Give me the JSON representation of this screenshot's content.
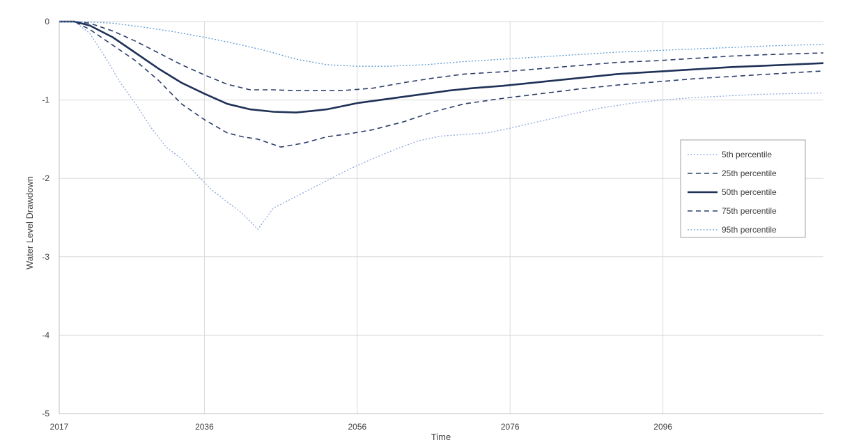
{
  "chart_data": {
    "type": "line",
    "title": "",
    "xlabel": "Time",
    "ylabel": "Water Level Drawdown",
    "xlim": [
      2017,
      2117
    ],
    "ylim": [
      -5,
      0
    ],
    "x_ticks": [
      2017,
      2036,
      2056,
      2076,
      2096
    ],
    "y_ticks": [
      0,
      -1,
      -2,
      -3,
      -4,
      -5
    ],
    "grid": true,
    "legend_position": "right",
    "series": [
      {
        "name": "5th percentile",
        "style": "dotted",
        "color": "#8fa8dc",
        "x": [
          2017,
          2019,
          2021,
          2023,
          2025,
          2027,
          2029,
          2031,
          2033,
          2035,
          2037,
          2039,
          2041,
          2043,
          2045,
          2047,
          2049,
          2051,
          2053,
          2055,
          2058,
          2061,
          2064,
          2067,
          2070,
          2073,
          2076,
          2080,
          2084,
          2088,
          2092,
          2096,
          2100,
          2104,
          2108,
          2112,
          2117
        ],
        "y": [
          0,
          0,
          -0.15,
          -0.45,
          -0.78,
          -1.05,
          -1.35,
          -1.6,
          -1.75,
          -1.95,
          -2.15,
          -2.3,
          -2.45,
          -2.65,
          -2.38,
          -2.28,
          -2.18,
          -2.08,
          -1.98,
          -1.88,
          -1.75,
          -1.63,
          -1.52,
          -1.46,
          -1.44,
          -1.42,
          -1.36,
          -1.27,
          -1.18,
          -1.1,
          -1.04,
          -1.0,
          -0.97,
          -0.95,
          -0.93,
          -0.92,
          -0.91
        ]
      },
      {
        "name": "25th percentile",
        "style": "dashed",
        "color": "#2c3e6c",
        "x": [
          2017,
          2019,
          2021,
          2024,
          2027,
          2030,
          2033,
          2036,
          2039,
          2041,
          2043,
          2046,
          2049,
          2052,
          2055,
          2058,
          2062,
          2066,
          2070,
          2075,
          2080,
          2085,
          2090,
          2095,
          2100,
          2105,
          2110,
          2117
        ],
        "y": [
          0,
          0,
          -0.1,
          -0.3,
          -0.5,
          -0.75,
          -1.05,
          -1.25,
          -1.42,
          -1.47,
          -1.5,
          -1.6,
          -1.55,
          -1.47,
          -1.43,
          -1.38,
          -1.28,
          -1.15,
          -1.05,
          -0.98,
          -0.92,
          -0.86,
          -0.81,
          -0.77,
          -0.73,
          -0.7,
          -0.67,
          -0.63
        ]
      },
      {
        "name": "50th percentile",
        "style": "solid",
        "color": "#1f3157",
        "x": [
          2017,
          2019,
          2021,
          2024,
          2027,
          2030,
          2033,
          2036,
          2039,
          2042,
          2045,
          2048,
          2050,
          2052,
          2054,
          2056,
          2059,
          2062,
          2065,
          2068,
          2071,
          2075,
          2080,
          2085,
          2090,
          2095,
          2100,
          2105,
          2110,
          2117
        ],
        "y": [
          0,
          0,
          -0.05,
          -0.2,
          -0.4,
          -0.6,
          -0.78,
          -0.92,
          -1.05,
          -1.12,
          -1.15,
          -1.16,
          -1.14,
          -1.12,
          -1.08,
          -1.04,
          -1.0,
          -0.96,
          -0.92,
          -0.88,
          -0.85,
          -0.82,
          -0.77,
          -0.72,
          -0.67,
          -0.64,
          -0.61,
          -0.58,
          -0.56,
          -0.53
        ]
      },
      {
        "name": "75th percentile",
        "style": "dashed",
        "color": "#2c3e6c",
        "x": [
          2017,
          2019,
          2021,
          2024,
          2027,
          2030,
          2033,
          2036,
          2039,
          2042,
          2045,
          2048,
          2051,
          2054,
          2058,
          2062,
          2066,
          2070,
          2075,
          2080,
          2085,
          2090,
          2095,
          2100,
          2105,
          2110,
          2117
        ],
        "y": [
          0,
          0,
          -0.02,
          -0.12,
          -0.25,
          -0.4,
          -0.55,
          -0.68,
          -0.8,
          -0.87,
          -0.87,
          -0.88,
          -0.88,
          -0.88,
          -0.85,
          -0.78,
          -0.72,
          -0.67,
          -0.64,
          -0.6,
          -0.56,
          -0.52,
          -0.5,
          -0.47,
          -0.44,
          -0.42,
          -0.4
        ]
      },
      {
        "name": "95th percentile",
        "style": "dotted",
        "color": "#5b9bd5",
        "x": [
          2017,
          2020,
          2024,
          2028,
          2032,
          2036,
          2040,
          2044,
          2048,
          2052,
          2056,
          2060,
          2065,
          2070,
          2075,
          2080,
          2085,
          2090,
          2095,
          2100,
          2105,
          2110,
          2117
        ],
        "y": [
          0,
          0,
          -0.02,
          -0.07,
          -0.13,
          -0.2,
          -0.28,
          -0.37,
          -0.48,
          -0.55,
          -0.57,
          -0.57,
          -0.55,
          -0.51,
          -0.48,
          -0.45,
          -0.42,
          -0.39,
          -0.37,
          -0.35,
          -0.33,
          -0.31,
          -0.29
        ]
      }
    ]
  }
}
